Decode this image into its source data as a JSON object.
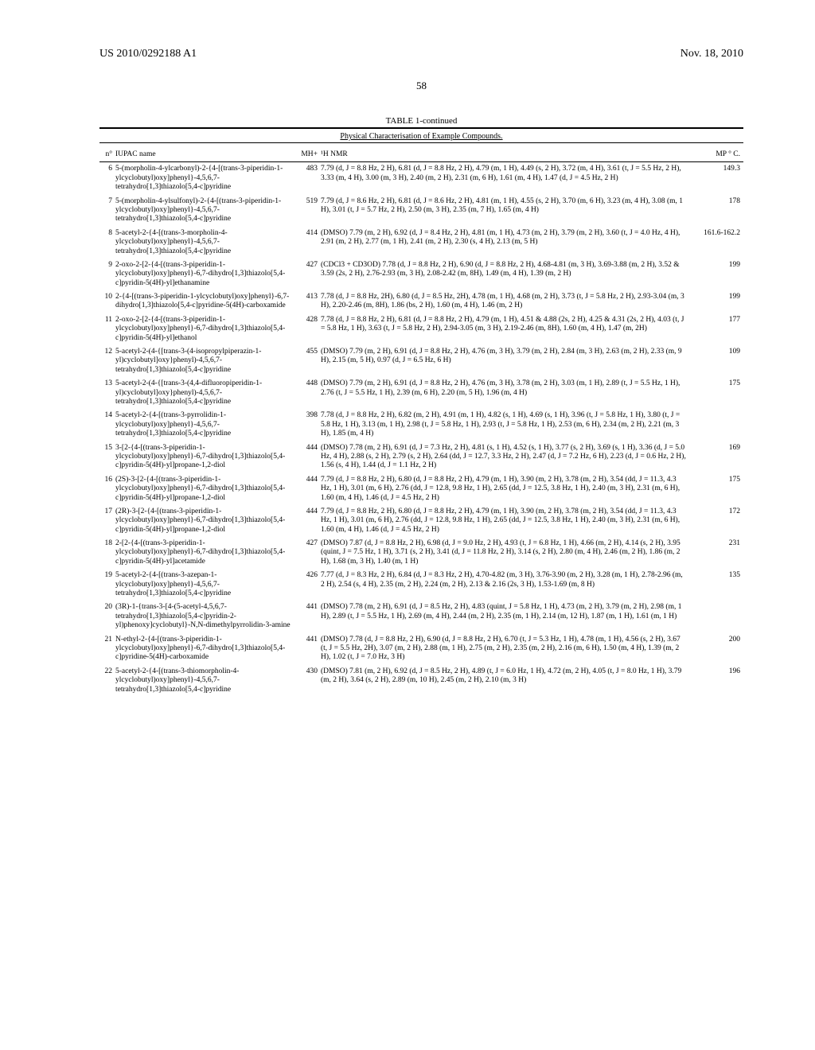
{
  "header": {
    "left": "US 2010/0292188 A1",
    "right": "Nov. 18, 2010"
  },
  "page_number": "58",
  "table": {
    "title": "TABLE 1-continued",
    "subtitle": "Physical Characterisation of Example Compounds.",
    "columns": {
      "n": "n°",
      "iupac": "IUPAC name",
      "mh": "MH+",
      "nmr": "¹H NMR",
      "mp": "MP ° C."
    },
    "rows": [
      {
        "n": "6",
        "name": "5-(morpholin-4-ylcarbonyl)-2-{4-[(trans-3-piperidin-1-ylcyclobutyl)oxy]phenyl}-4,5,6,7-tetrahydro[1,3]thiazolo[5,4-c]pyridine",
        "mh": "483",
        "nmr": "7.79 (d, J = 8.8 Hz, 2 H), 6.81 (d, J = 8.8 Hz, 2 H), 4.79 (m, 1 H), 4.49 (s, 2 H), 3.72 (m, 4 H), 3.61 (t, J = 5.5 Hz, 2 H), 3.33 (m, 4 H), 3.00 (m, 3 H), 2.40 (m, 2 H), 2.31 (m, 6 H), 1.61 (m, 4 H), 1.47 (d, J = 4.5 Hz, 2 H)",
        "mp": "149.3"
      },
      {
        "n": "7",
        "name": "5-(morpholin-4-ylsulfonyl)-2-{4-[(trans-3-piperidin-1-ylcyclobutyl)oxy]phenyl}-4,5,6,7-tetrahydro[1,3]thiazolo[5,4-c]pyridine",
        "mh": "519",
        "nmr": "7.79 (d, J = 8.6 Hz, 2 H), 6.81 (d, J = 8.6 Hz, 2 H), 4.81 (m, 1 H), 4.55 (s, 2 H), 3.70 (m, 6 H), 3.23 (m, 4 H), 3.08 (m, 1 H), 3.01 (t, J = 5.7 Hz, 2 H), 2.50 (m, 3 H), 2.35 (m, 7 H), 1.65 (m, 4 H)",
        "mp": "178"
      },
      {
        "n": "8",
        "name": "5-acetyl-2-{4-[(trans-3-morpholin-4-ylcyclobutyl)oxy]phenyl}-4,5,6,7-tetrahydro[1,3]thiazolo[5,4-c]pyridine",
        "mh": "414",
        "nmr": "(DMSO) 7.79 (m, 2 H), 6.92 (d, J = 8.4 Hz, 2 H), 4.81 (m, 1 H), 4.73 (m, 2 H), 3.79 (m, 2 H), 3.60 (t, J = 4.0 Hz, 4 H), 2.91 (m, 2 H), 2.77 (m, 1 H), 2.41 (m, 2 H), 2.30 (s, 4 H), 2.13 (m, 5 H)",
        "mp": "161.6-162.2"
      },
      {
        "n": "9",
        "name": "2-oxo-2-[2-{4-[(trans-3-piperidin-1-ylcyclobutyl)oxy]phenyl}-6,7-dihydro[1,3]thiazolo[5,4-c]pyridin-5(4H)-yl]ethanamine",
        "mh": "427",
        "nmr": "(CDCl3 + CD3OD) 7.78 (d, J = 8.8 Hz, 2 H), 6.90 (d, J = 8.8 Hz, 2 H), 4.68-4.81 (m, 3 H), 3.69-3.88 (m, 2 H), 3.52 & 3.59 (2s, 2 H), 2.76-2.93 (m, 3 H), 2.08-2.42 (m, 8H), 1.49 (m, 4 H), 1.39 (m, 2 H)",
        "mp": "199"
      },
      {
        "n": "10",
        "name": "2-{4-[(trans-3-piperidin-1-ylcyclobutyl)oxy]phenyl}-6,7-dihydro[1,3]thiazolo[5,4-c]pyridine-5(4H)-carboxamide",
        "mh": "413",
        "nmr": "7.78 (d, J = 8.8 Hz, 2H), 6.80 (d, J = 8.5 Hz, 2H), 4.78 (m, 1 H), 4.68 (m, 2 H), 3.73 (t, J = 5.8 Hz, 2 H), 2.93-3.04 (m, 3 H), 2.20-2.46 (m, 8H), 1.86 (bs, 2 H), 1.60 (m, 4 H), 1.46 (m, 2 H)",
        "mp": "199"
      },
      {
        "n": "11",
        "name": "2-oxo-2-[2-{4-[(trans-3-piperidin-1-ylcyclobutyl)oxy]phenyl}-6,7-dihydro[1,3]thiazolo[5,4-c]pyridin-5(4H)-yl]ethanol",
        "mh": "428",
        "nmr": "7.78 (d, J = 8.8 Hz, 2 H), 6.81 (d, J = 8.8 Hz, 2 H), 4.79 (m, 1 H), 4.51 & 4.88 (2s, 2 H), 4.25 & 4.31 (2s, 2 H), 4.03 (t, J = 5.8 Hz, 1 H), 3.63 (t, J = 5.8 Hz, 2 H), 2.94-3.05 (m, 3 H), 2.19-2.46 (m, 8H), 1.60 (m, 4 H), 1.47 (m, 2H)",
        "mp": "177"
      },
      {
        "n": "12",
        "name": "5-acetyl-2-(4-{[trans-3-(4-isopropylpiperazin-1-yl)cyclobutyl]oxy}phenyl)-4,5,6,7-tetrahydro[1,3]thiazolo[5,4-c]pyridine",
        "mh": "455",
        "nmr": "(DMSO) 7.79 (m, 2 H), 6.91 (d, J = 8.8 Hz, 2 H), 4.76 (m, 3 H), 3.79 (m, 2 H), 2.84 (m, 3 H), 2.63 (m, 2 H), 2.33 (m, 9 H), 2.15 (m, 5 H), 0.97 (d, J = 6.5 Hz, 6 H)",
        "mp": "109"
      },
      {
        "n": "13",
        "name": "5-acetyl-2-(4-{[trans-3-(4,4-difluoropiperidin-1-yl)cyclobutyl]oxy}phenyl)-4,5,6,7-tetrahydro[1,3]thiazolo[5,4-c]pyridine",
        "mh": "448",
        "nmr": "(DMSO) 7.79 (m, 2 H), 6.91 (d, J = 8.8 Hz, 2 H), 4.76 (m, 3 H), 3.78 (m, 2 H), 3.03 (m, 1 H), 2.89 (t, J = 5.5 Hz, 1 H), 2.76 (t, J = 5.5 Hz, 1 H), 2.39 (m, 6 H), 2.20 (m, 5 H), 1.96 (m, 4 H)",
        "mp": "175"
      },
      {
        "n": "14",
        "name": "5-acetyl-2-{4-[(trans-3-pyrrolidin-1-ylcyclobutyl)oxy]phenyl}-4,5,6,7-tetrahydro[1,3]thiazolo[5,4-c]pyridine",
        "mh": "398",
        "nmr": "7.78 (d, J = 8.8 Hz, 2 H), 6.82 (m, 2 H), 4.91 (m, 1 H), 4.82 (s, 1 H), 4.69 (s, 1 H), 3.96 (t, J = 5.8 Hz, 1 H), 3.80 (t, J = 5.8 Hz, 1 H), 3.13 (m, 1 H), 2.98 (t, J = 5.8 Hz, 1 H), 2.93 (t, J = 5.8 Hz, 1 H), 2.53 (m, 6 H), 2.34 (m, 2 H), 2.21 (m, 3 H), 1.85 (m, 4 H)",
        "mp": ""
      },
      {
        "n": "15",
        "name": "3-[2-{4-[(trans-3-piperidin-1-ylcyclobutyl)oxy]phenyl}-6,7-dihydro[1,3]thiazolo[5,4-c]pyridin-5(4H)-yl]propane-1,2-diol",
        "mh": "444",
        "nmr": "(DMSO) 7.78 (m, 2 H), 6.91 (d, J = 7.3 Hz, 2 H), 4.81 (s, 1 H), 4.52 (s, 1 H), 3.77 (s, 2 H), 3.69 (s, 1 H), 3.36 (d, J = 5.0 Hz, 4 H), 2.88 (s, 2 H), 2.79 (s, 2 H), 2.64 (dd, J = 12.7, 3.3 Hz, 2 H), 2.47 (d, J = 7.2 Hz, 6 H), 2.23 (d, J = 0.6 Hz, 2 H), 1.56 (s, 4 H), 1.44 (d, J = 1.1 Hz, 2 H)",
        "mp": "169"
      },
      {
        "n": "16",
        "name": "(2S)-3-[2-{4-[(trans-3-piperidin-1-ylcyclobutyl)oxy]phenyl}-6,7-dihydro[1,3]thiazolo[5,4-c]pyridin-5(4H)-yl]propane-1,2-diol",
        "mh": "444",
        "nmr": "7.79 (d, J = 8.8 Hz, 2 H), 6.80 (d, J = 8.8 Hz, 2 H), 4.79 (m, 1 H), 3.90 (m, 2 H), 3.78 (m, 2 H), 3.54 (dd, J = 11.3, 4.3 Hz, 1 H), 3.01 (m, 6 H), 2.76 (dd, J = 12.8, 9.8 Hz, 1 H), 2.65 (dd, J = 12.5, 3.8 Hz, 1 H), 2.40 (m, 3 H), 2.31 (m, 6 H), 1.60 (m, 4 H), 1.46 (d, J = 4.5 Hz, 2 H)",
        "mp": "175"
      },
      {
        "n": "17",
        "name": "(2R)-3-[2-{4-[(trans-3-piperidin-1-ylcyclobutyl)oxy]phenyl}-6,7-dihydro[1,3]thiazolo[5,4-c]pyridin-5(4H)-yl]propane-1,2-diol",
        "mh": "444",
        "nmr": "7.79 (d, J = 8.8 Hz, 2 H), 6.80 (d, J = 8.8 Hz, 2 H), 4.79 (m, 1 H), 3.90 (m, 2 H), 3.78 (m, 2 H), 3.54 (dd, J = 11.3, 4.3 Hz, 1 H), 3.01 (m, 6 H), 2.76 (dd, J = 12.8, 9.8 Hz, 1 H), 2.65 (dd, J = 12.5, 3.8 Hz, 1 H), 2.40 (m, 3 H), 2.31 (m, 6 H), 1.60 (m, 4 H), 1.46 (d, J = 4.5 Hz, 2 H)",
        "mp": "172"
      },
      {
        "n": "18",
        "name": "2-[2-{4-[(trans-3-piperidin-1-ylcyclobutyl)oxy]phenyl}-6,7-dihydro[1,3]thiazolo[5,4-c]pyridin-5(4H)-yl]acetamide",
        "mh": "427",
        "nmr": "(DMSO) 7.87 (d, J = 8.8 Hz, 2 H), 6.98 (d, J = 9.0 Hz, 2 H), 4.93 (t, J = 6.8 Hz, 1 H), 4.66 (m, 2 H), 4.14 (s, 2 H), 3.95 (quint, J = 7.5 Hz, 1 H), 3.71 (s, 2 H), 3.41 (d, J = 11.8 Hz, 2 H), 3.14 (s, 2 H), 2.80 (m, 4 H), 2.46 (m, 2 H), 1.86 (m, 2 H), 1.68 (m, 3 H), 1.40 (m, 1 H)",
        "mp": "231"
      },
      {
        "n": "19",
        "name": "5-acetyl-2-{4-[(trans-3-azepan-1-ylcyclobutyl)oxy]phenyl}-4,5,6,7-tetrahydro[1,3]thiazolo[5,4-c]pyridine",
        "mh": "426",
        "nmr": "7.77 (d, J = 8.3 Hz, 2 H), 6.84 (d, J = 8.3 Hz, 2 H), 4.70-4.82 (m, 3 H), 3.76-3.90 (m, 2 H), 3.28 (m, 1 H), 2.78-2.96 (m, 2 H), 2.54 (s, 4 H), 2.35 (m, 2 H), 2.24 (m, 2 H), 2.13 & 2.16 (2s, 3 H), 1.53-1.69 (m, 8 H)",
        "mp": "135"
      },
      {
        "n": "20",
        "name": "(3R)-1-{trans-3-[4-(5-acetyl-4,5,6,7-tetrahydro[1,3]thiazolo[5,4-c]pyridin-2-yl)phenoxy]cyclobutyl}-N,N-dimethylpyrrolidin-3-amine",
        "mh": "441",
        "nmr": "(DMSO) 7.78 (m, 2 H), 6.91 (d, J = 8.5 Hz, 2 H), 4.83 (quint, J = 5.8 Hz, 1 H), 4.73 (m, 2 H), 3.79 (m, 2 H), 2.98 (m, 1 H), 2.89 (t, J = 5.5 Hz, 1 H), 2.69 (m, 4 H), 2.44 (m, 2 H), 2.35 (m, 1 H), 2.14 (m, 12 H), 1.87 (m, 1 H), 1.61 (m, 1 H)",
        "mp": ""
      },
      {
        "n": "21",
        "name": "N-ethyl-2-{4-[(trans-3-piperidin-1-ylcyclobutyl)oxy]phenyl}-6,7-dihydro[1,3]thiazolo[5,4-c]pyridine-5(4H)-carboxamide",
        "mh": "441",
        "nmr": "(DMSO) 7.78 (d, J = 8.8 Hz, 2 H), 6.90 (d, J = 8.8 Hz, 2 H), 6.70 (t, J = 5.3 Hz, 1 H), 4.78 (m, 1 H), 4.56 (s, 2 H), 3.67 (t, J = 5.5 Hz, 2H), 3.07 (m, 2 H), 2.88 (m, 1 H), 2.75 (m, 2 H), 2.35 (m, 2 H), 2.16 (m, 6 H), 1.50 (m, 4 H), 1.39 (m, 2 H), 1.02 (t, J = 7.0 Hz, 3 H)",
        "mp": "200"
      },
      {
        "n": "22",
        "name": "5-acetyl-2-{4-[(trans-3-thiomorpholin-4-ylcyclobutyl)oxy]phenyl}-4,5,6,7-tetrahydro[1,3]thiazolo[5,4-c]pyridine",
        "mh": "430",
        "nmr": "(DMSO) 7.81 (m, 2 H), 6.92 (d, J = 8.5 Hz, 2 H), 4.89 (t, J = 6.0 Hz, 1 H), 4.72 (m, 2 H), 4.05 (t, J = 8.0 Hz, 1 H), 3.79 (m, 2 H), 3.64 (s, 2 H), 2.89 (m, 10 H), 2.45 (m, 2 H), 2.10 (m, 3 H)",
        "mp": "196"
      }
    ]
  }
}
